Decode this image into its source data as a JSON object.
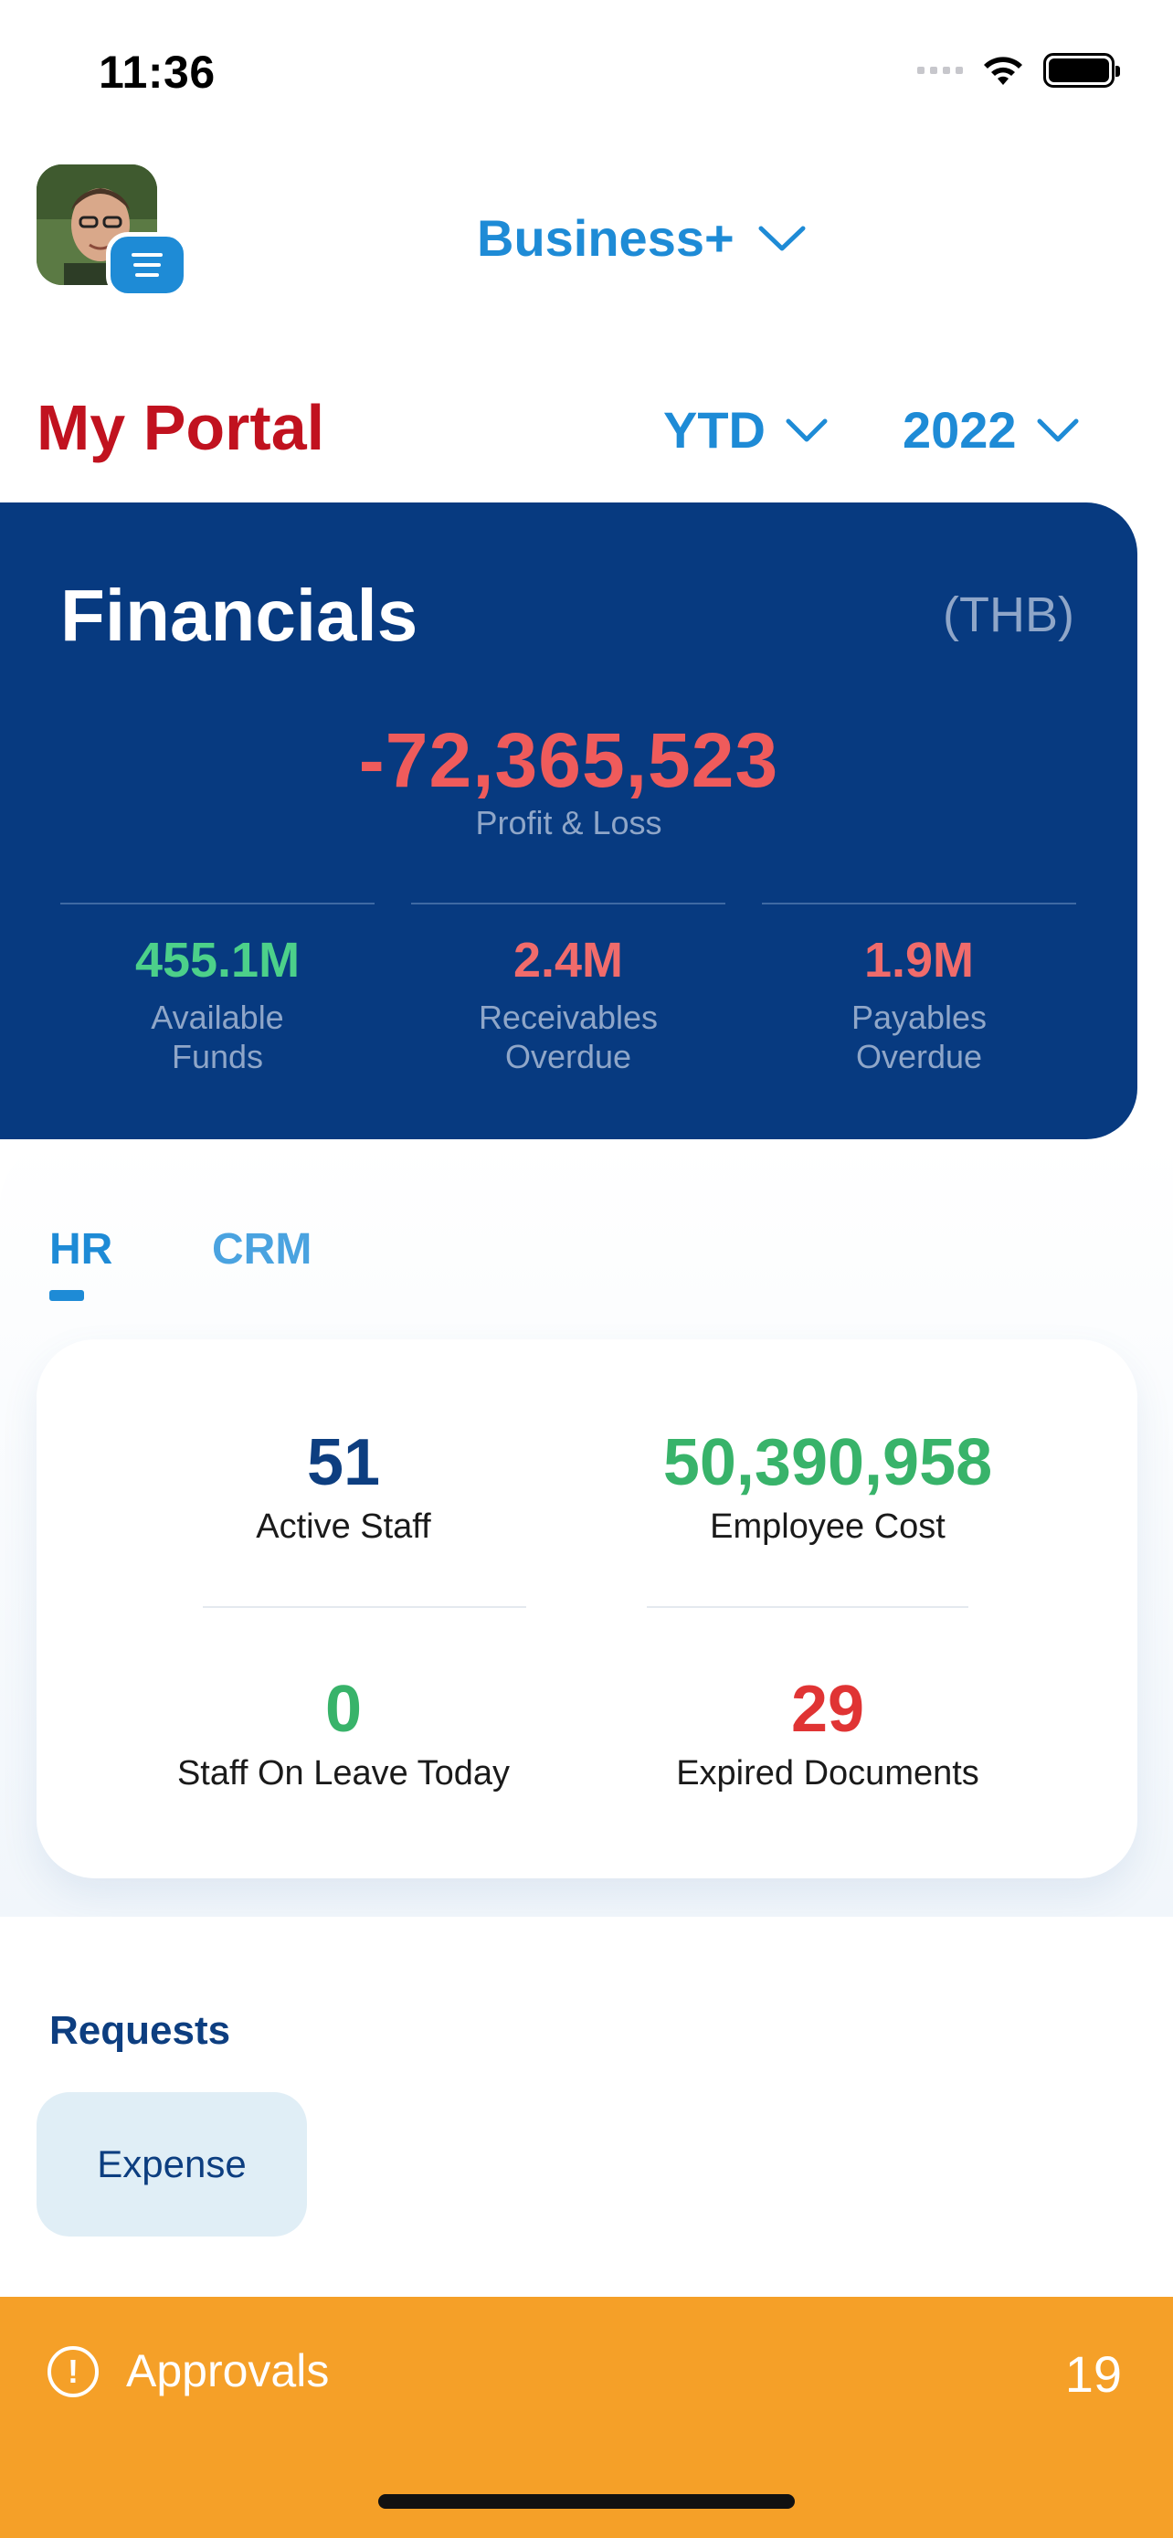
{
  "status_bar": {
    "time": "11:36"
  },
  "header": {
    "organization": "Business+"
  },
  "page": {
    "title": "My Portal",
    "period": "YTD",
    "year": "2022"
  },
  "financials": {
    "title": "Financials",
    "currency": "(THB)",
    "profit_loss_value": "-72,365,523",
    "profit_loss_label": "Profit & Loss",
    "stats": [
      {
        "value": "455.1M",
        "label_line1": "Available",
        "label_line2": "Funds",
        "color": "#4cd08a"
      },
      {
        "value": "2.4M",
        "label_line1": "Receivables",
        "label_line2": "Overdue",
        "color": "#f06b6b"
      },
      {
        "value": "1.9M",
        "label_line1": "Payables",
        "label_line2": "Overdue",
        "color": "#f06b6b"
      }
    ]
  },
  "tabs": [
    {
      "label": "HR",
      "active": true
    },
    {
      "label": "CRM",
      "active": false
    }
  ],
  "hr": {
    "active_staff": {
      "value": "51",
      "label": "Active Staff"
    },
    "employee_cost": {
      "value": "50,390,958",
      "label": "Employee Cost"
    },
    "on_leave": {
      "value": "0",
      "label": "Staff On Leave Today"
    },
    "expired_docs": {
      "value": "29",
      "label": "Expired Documents"
    }
  },
  "requests": {
    "title": "Requests",
    "items": [
      {
        "label": "Expense"
      }
    ]
  },
  "approvals": {
    "label": "Approvals",
    "count": "19"
  },
  "colors": {
    "brand_blue": "#1e8bd6",
    "navy": "#073a80",
    "title_red": "#c1121f",
    "approvals_orange": "#f5a028"
  }
}
